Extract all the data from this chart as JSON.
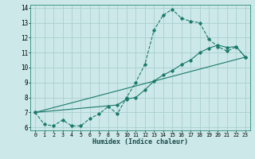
{
  "xlabel": "Humidex (Indice chaleur)",
  "bg_color": "#cce8e8",
  "grid_color": "#aacfcf",
  "line_color": "#1a7a6a",
  "xlim": [
    -0.5,
    23.5
  ],
  "ylim": [
    5.8,
    14.2
  ],
  "xticks": [
    0,
    1,
    2,
    3,
    4,
    5,
    6,
    7,
    8,
    9,
    10,
    11,
    12,
    13,
    14,
    15,
    16,
    17,
    18,
    19,
    20,
    21,
    22,
    23
  ],
  "yticks": [
    6,
    7,
    8,
    9,
    10,
    11,
    12,
    13,
    14
  ],
  "line1_x": [
    0,
    1,
    2,
    3,
    4,
    5,
    6,
    7,
    8,
    9,
    10,
    11,
    12,
    13,
    14,
    15,
    16,
    17,
    18,
    19,
    20,
    21,
    22,
    23
  ],
  "line1_y": [
    7.0,
    6.2,
    6.1,
    6.5,
    6.1,
    6.1,
    6.6,
    6.9,
    7.4,
    6.9,
    8.0,
    9.0,
    10.2,
    12.5,
    13.5,
    13.9,
    13.3,
    13.1,
    13.0,
    11.9,
    11.4,
    11.1,
    11.4,
    10.7
  ],
  "line2_x": [
    0,
    9,
    10,
    11,
    12,
    13,
    14,
    15,
    16,
    17,
    18,
    19,
    20,
    21,
    22,
    23
  ],
  "line2_y": [
    7.0,
    7.5,
    7.9,
    8.0,
    8.5,
    9.1,
    9.5,
    9.8,
    10.2,
    10.5,
    11.0,
    11.3,
    11.5,
    11.35,
    11.4,
    10.7
  ],
  "line3_x": [
    0,
    23
  ],
  "line3_y": [
    7.0,
    10.7
  ]
}
